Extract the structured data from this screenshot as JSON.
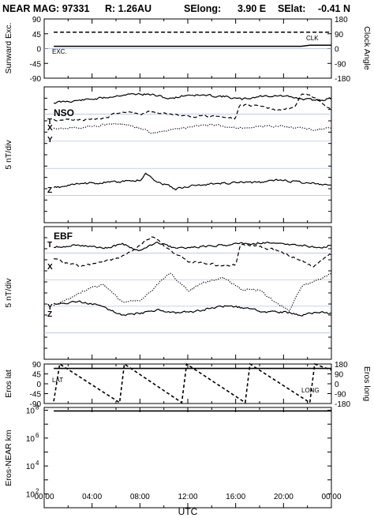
{
  "header": {
    "instrument": "NEAR MAG: 97331",
    "range": "R: 1.26AU",
    "selong_label": "SElong:",
    "selong_value": "3.90 E",
    "selat_label": "SElat:",
    "selat_value": "-0.41 N"
  },
  "xaxis": {
    "label": "UTC",
    "ticks": [
      "00:00",
      "04:00",
      "08:00",
      "12:00",
      "16:00",
      "20:00",
      "00:00"
    ],
    "range_hours": [
      0,
      24
    ]
  },
  "chart_data": [
    {
      "id": "sunward",
      "type": "line",
      "ylabel_left": "Sunward Exc.",
      "ylabel_right": "Clock Angle",
      "left_ticks": [
        "-90",
        "-45",
        "0",
        "45",
        "90"
      ],
      "right_ticks": [
        "-180",
        "-90",
        "0",
        "90",
        "180"
      ],
      "ylim": [
        -90,
        90
      ],
      "yrange_right": [
        -180,
        180
      ],
      "series": [
        {
          "name": "CLK",
          "style": "dashed",
          "x": [
            0.8,
            24
          ],
          "y": [
            50,
            50
          ]
        },
        {
          "name": "EXC.",
          "style": "solid",
          "x": [
            0.8,
            21.5,
            22.2,
            24
          ],
          "y": [
            7,
            7,
            10,
            10
          ]
        }
      ]
    },
    {
      "id": "nso",
      "type": "line",
      "title": "NSO",
      "ylabel": "5 nT/div",
      "series": [
        {
          "name": "T",
          "style": "solid",
          "seed": 11,
          "base": 13,
          "amp": 5,
          "x": [
            0.8,
            3,
            5,
            6.5,
            8,
            9,
            10.5,
            12,
            13.5,
            15,
            16.5,
            18,
            19.5,
            21,
            22.5,
            24
          ],
          "y": [
            20,
            17,
            14,
            10,
            9,
            10,
            15,
            10,
            11,
            12,
            16,
            12,
            11,
            14,
            17,
            15
          ]
        },
        {
          "name": "X",
          "style": "dashed",
          "seed": 23,
          "base": 37,
          "amp": 5,
          "x": [
            0.8,
            3,
            5,
            6.5,
            8,
            9,
            10.5,
            12,
            13.5,
            15,
            16,
            16.3,
            18,
            19.5,
            21,
            21.5,
            22.5,
            24
          ],
          "y": [
            42,
            41,
            40,
            31,
            34,
            31,
            35,
            37,
            37,
            38,
            40,
            23,
            24,
            30,
            26,
            10,
            13,
            30
          ]
        },
        {
          "name": "Y",
          "style": "dotted",
          "seed": 37,
          "base": 50,
          "amp": 6,
          "x": [
            0.8,
            3,
            5,
            6.5,
            8,
            9,
            10.5,
            12,
            13.5,
            15,
            16.5,
            18,
            19.5,
            21,
            22.5,
            24
          ],
          "y": [
            52,
            51,
            48,
            47,
            52,
            59,
            54,
            52,
            48,
            50,
            52,
            51,
            49,
            52,
            54,
            53
          ]
        },
        {
          "name": "Z",
          "style": "solid",
          "seed": 53,
          "base": 123,
          "amp": 5,
          "x": [
            0.8,
            3,
            5,
            6.5,
            8,
            8.5,
            9.5,
            11,
            12,
            13.5,
            15,
            16.5,
            18,
            19.5,
            21,
            22.5,
            24
          ],
          "y": [
            128,
            123,
            121,
            120,
            118,
            110,
            120,
            129,
            126,
            124,
            122,
            121,
            121,
            118,
            120,
            122,
            124
          ]
        }
      ]
    },
    {
      "id": "ebf",
      "type": "line",
      "title": "EBF",
      "ylabel": "5 nT/div",
      "series": [
        {
          "name": "T",
          "style": "solid",
          "seed": 61,
          "base": 24,
          "amp": 5,
          "x": [
            0.8,
            3,
            5,
            6.5,
            8,
            9.5,
            11,
            12.5,
            14,
            15.5,
            17,
            18.5,
            20,
            21.5,
            23,
            24
          ],
          "y": [
            26,
            23,
            27,
            22,
            30,
            20,
            28,
            26,
            24,
            23,
            21,
            20,
            22,
            24,
            27,
            23
          ]
        },
        {
          "name": "X",
          "style": "dashed",
          "seed": 71,
          "base": 44,
          "amp": 6,
          "x": [
            0.8,
            3,
            5,
            6.5,
            8,
            9,
            10.5,
            12,
            13.5,
            15,
            16,
            16.4,
            18,
            19.5,
            21,
            22.5,
            24
          ],
          "y": [
            42,
            50,
            44,
            38,
            24,
            12,
            30,
            44,
            46,
            50,
            48,
            22,
            26,
            30,
            40,
            50,
            35
          ]
        },
        {
          "name": "Y",
          "style": "dotted",
          "seed": 83,
          "base": 90,
          "amp": 10,
          "x": [
            0.8,
            2,
            3.5,
            5,
            6.5,
            8,
            9,
            10.5,
            12,
            13.5,
            15,
            16.5,
            18,
            19.5,
            20.5,
            21.5,
            22.5,
            24
          ],
          "y": [
            100,
            92,
            80,
            74,
            96,
            93,
            80,
            58,
            82,
            70,
            65,
            80,
            80,
            98,
            106,
            75,
            70,
            60
          ]
        },
        {
          "name": "Z",
          "style": "solid",
          "seed": 97,
          "base": 108,
          "amp": 5,
          "x": [
            0.8,
            3,
            5,
            6.5,
            8,
            9.5,
            11,
            12.5,
            14,
            15.5,
            17,
            18.5,
            20,
            21.5,
            23,
            24
          ],
          "y": [
            98,
            95,
            102,
            112,
            110,
            105,
            110,
            108,
            103,
            100,
            104,
            108,
            108,
            112,
            108,
            110
          ]
        }
      ]
    },
    {
      "id": "eros",
      "type": "line",
      "ylabel_left": "Eros lat",
      "ylabel_right": "Eros long",
      "left_ticks": [
        "-90",
        "-45",
        "0",
        "45",
        "90"
      ],
      "right_ticks": [
        "-180",
        "-90",
        "0",
        "90",
        "180"
      ],
      "ylim": [
        -90,
        90
      ],
      "yrange_right": [
        -180,
        180
      ],
      "series": [
        {
          "name": "LAT",
          "style": "solid",
          "x": [
            0.8,
            24
          ],
          "y": [
            70,
            70
          ]
        },
        {
          "name": "LONG",
          "style": "dashed",
          "x": [
            0.8,
            1.3,
            6.3,
            6.7,
            11.5,
            11.9,
            16.8,
            17.2,
            22.2,
            22.6,
            24
          ],
          "y": [
            -160,
            180,
            -172,
            180,
            -172,
            180,
            -172,
            180,
            -172,
            180,
            125
          ]
        }
      ]
    },
    {
      "id": "distance",
      "type": "line",
      "ylabel": "Eros-NEAR km",
      "yscale": "log",
      "ylim_exp": [
        1,
        8.2
      ],
      "tick_bases": [
        "10",
        "10",
        "10",
        "10"
      ],
      "tick_exponents": [
        "2",
        "4",
        "6",
        "8"
      ],
      "series": [
        {
          "name": "distance",
          "style": "solid",
          "x": [
            0.8,
            24
          ],
          "y_exp": [
            7.95,
            7.95
          ]
        }
      ]
    }
  ]
}
